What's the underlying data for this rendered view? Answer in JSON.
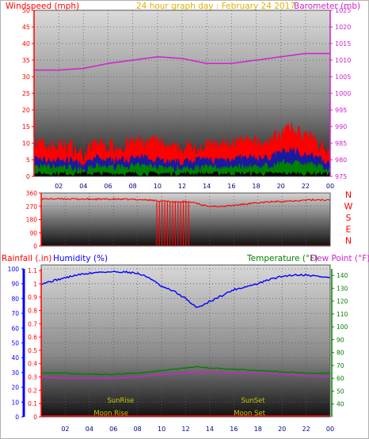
{
  "header": {
    "left_title": "Windspeed (mph)",
    "center_title": "24 hour graph day : February 24 2017",
    "right_title": "Barometer (mb)"
  },
  "colors": {
    "wind": "#ff0000",
    "gust_inner": "#1a1aa0",
    "gust_low": "#008000",
    "barometer": "#d020d0",
    "direction": "#ff0000",
    "humidity": "#0000ff",
    "temperature": "#008000",
    "dewpoint": "#d020d0",
    "rainfall": "#ff0000",
    "sun_moon": "#c8c800",
    "title": "#e0b000"
  },
  "x_ticks": [
    "02",
    "04",
    "06",
    "08",
    "10",
    "12",
    "14",
    "16",
    "18",
    "20",
    "22",
    "00"
  ],
  "chart_data": [
    {
      "type": "line",
      "name": "wind-barometer",
      "ylabel_left": "Windspeed (mph)",
      "ylabel_right": "Barometer (mb)",
      "ylim_left": [
        0,
        50
      ],
      "ylim_right": [
        975,
        1025
      ],
      "left_ticks": [
        0,
        5,
        10,
        15,
        20,
        25,
        30,
        35,
        40,
        45,
        50
      ],
      "right_ticks": [
        975,
        980,
        985,
        990,
        995,
        1000,
        1005,
        1010,
        1015,
        1020,
        1025
      ],
      "xlim": [
        0,
        24
      ],
      "series": [
        {
          "name": "Barometer",
          "axis": "right",
          "x": [
            0,
            2,
            4,
            6,
            8,
            10,
            12,
            14,
            16,
            18,
            20,
            22,
            24
          ],
          "values": [
            1007,
            1007,
            1007.5,
            1009,
            1010,
            1011,
            1010.5,
            1009,
            1009,
            1010,
            1011,
            1012,
            1012
          ]
        },
        {
          "name": "Windspeed",
          "axis": "left",
          "x": [
            0,
            1,
            2,
            3,
            4,
            5,
            6,
            7,
            8,
            9,
            10,
            11,
            12,
            13,
            14,
            15,
            16,
            17,
            18,
            19,
            20,
            21,
            22,
            23,
            24
          ],
          "values": [
            9,
            8,
            8,
            8,
            5,
            9,
            8,
            8,
            9,
            9,
            9,
            7,
            7,
            8,
            8,
            8,
            9,
            9,
            9,
            9,
            12,
            13,
            11,
            9,
            6
          ]
        }
      ]
    },
    {
      "type": "line",
      "name": "wind-direction",
      "ylim": [
        0,
        360
      ],
      "y_ticks": [
        0,
        90,
        180,
        270,
        360
      ],
      "compass_labels": [
        "N",
        "W",
        "S",
        "E",
        "N"
      ],
      "xlim": [
        0,
        24
      ],
      "series": [
        {
          "name": "Direction",
          "x": [
            0,
            2,
            4,
            6,
            8,
            9,
            10,
            11,
            12,
            12.8,
            13.5,
            15,
            17,
            19,
            21,
            23,
            24
          ],
          "values": [
            320,
            320,
            318,
            318,
            316,
            312,
            305,
            300,
            300,
            295,
            275,
            268,
            285,
            300,
            308,
            315,
            310
          ]
        }
      ]
    },
    {
      "type": "line",
      "name": "rain-humidity-temperature",
      "ylabel_left_1": "Rainfall (.in)",
      "ylabel_left_2": "Humidity (%)",
      "ylabel_right_1": "Temperature (°F)",
      "ylabel_right_2": "Dew Point (°F)",
      "rain_ticks": [
        "0",
        "0.1",
        "0.2",
        "0.3",
        "0.4",
        "0.5",
        "0.6",
        "0.7",
        "0.8",
        "0.9",
        "1",
        "1.1"
      ],
      "humidity_ticks": [
        0,
        10,
        20,
        30,
        40,
        50,
        60,
        70,
        80,
        90,
        100
      ],
      "temp_ticks": [
        40,
        50,
        60,
        70,
        80,
        90,
        100,
        110,
        120,
        130,
        140
      ],
      "ylim_humidity": [
        0,
        100
      ],
      "ylim_temp": [
        30,
        145
      ],
      "xlim": [
        0,
        24
      ],
      "series": [
        {
          "name": "Humidity",
          "axis": "humidity",
          "x": [
            0,
            1,
            2,
            3,
            4,
            5,
            6,
            7,
            8,
            9,
            10,
            11,
            12,
            12.5,
            13,
            14,
            15,
            16,
            17,
            18,
            19,
            20,
            21,
            22,
            23,
            24
          ],
          "values": [
            90,
            92,
            94,
            96,
            97,
            98,
            98,
            98,
            97,
            94,
            88,
            85,
            80,
            76,
            74,
            78,
            82,
            86,
            88,
            90,
            93,
            95,
            96,
            96,
            95,
            94
          ]
        },
        {
          "name": "Temperature",
          "axis": "temp",
          "x": [
            0,
            2,
            4,
            6,
            8,
            10,
            12,
            13,
            14,
            16,
            18,
            20,
            22,
            24
          ],
          "values": [
            64,
            64,
            63,
            63,
            64,
            66,
            68,
            69,
            68,
            67,
            66,
            65,
            64,
            64
          ]
        },
        {
          "name": "Dew Point",
          "axis": "temp",
          "x": [
            0,
            2,
            4,
            6,
            8,
            10,
            12,
            14,
            16,
            18,
            20,
            22,
            24
          ],
          "values": [
            61,
            60,
            60,
            60,
            61,
            63,
            64,
            65,
            64,
            64,
            63,
            62,
            61
          ]
        },
        {
          "name": "Rainfall",
          "axis": "rain",
          "x": [
            0,
            24
          ],
          "values": [
            0,
            0
          ]
        }
      ],
      "annotations": [
        {
          "text": "SunRise",
          "x": 6.6
        },
        {
          "text": "SunSet",
          "x": 17.6
        },
        {
          "text": "Moon Rise",
          "x": 5.8
        },
        {
          "text": "Moon Set",
          "x": 17.3
        }
      ]
    }
  ]
}
